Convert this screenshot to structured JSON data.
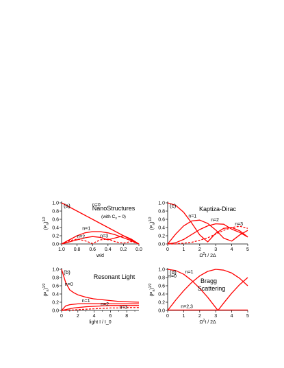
{
  "chart_data": [
    {
      "id": "a",
      "type": "line",
      "panel_label": "(a)",
      "title": "NanoStructures",
      "subtitle": "(with C",
      "subtitle_sub": "3",
      "subtitle_end": " = 0)",
      "xlabel": "w/d",
      "ylabel": "(P",
      "ylabel_sub": "n",
      "ylabel_sup": ")",
      "ylabel_pow": "1/2",
      "xlim": [
        1.0,
        0.0
      ],
      "ylim": [
        0,
        1.0
      ],
      "xticks": [
        1.0,
        0.8,
        0.6,
        0.4,
        0.2,
        0.0
      ],
      "xtick_labels": [
        "1.0",
        "0.8",
        "0.6",
        "0.4",
        "0.2",
        "0.0"
      ],
      "yticks": [
        0,
        0.2,
        0.4,
        0.6,
        0.8,
        1.0
      ],
      "ytick_labels": [
        "0.0",
        "0.2",
        "0.4",
        "0.6",
        "0.8",
        "1.0"
      ],
      "series": [
        {
          "label": "n=0",
          "dashed": false,
          "x": [
            1.0,
            0.9,
            0.8,
            0.7,
            0.6,
            0.5,
            0.4,
            0.3,
            0.2,
            0.1,
            0.0
          ],
          "y": [
            1.0,
            0.9,
            0.8,
            0.7,
            0.6,
            0.5,
            0.4,
            0.3,
            0.2,
            0.1,
            0.0
          ]
        },
        {
          "label": "n=1",
          "dashed": false,
          "x": [
            1.0,
            0.9,
            0.8,
            0.7,
            0.6,
            0.5,
            0.4,
            0.3,
            0.2,
            0.1,
            0.0
          ],
          "y": [
            0.0,
            0.1,
            0.2,
            0.27,
            0.3,
            0.3,
            0.27,
            0.22,
            0.15,
            0.08,
            0.0
          ]
        },
        {
          "label": "n=2",
          "dashed": true,
          "x": [
            1.0,
            0.9,
            0.8,
            0.7,
            0.6,
            0.5,
            0.4,
            0.3,
            0.2,
            0.1,
            0.0
          ],
          "y": [
            0.0,
            0.08,
            0.12,
            0.08,
            0.01,
            0.1,
            0.12,
            0.05,
            0.02,
            0.06,
            0.0
          ]
        },
        {
          "label": "n=3",
          "dashed": false,
          "x": [
            1.0,
            0.9,
            0.8,
            0.7,
            0.6,
            0.5,
            0.4,
            0.3,
            0.2,
            0.1,
            0.0
          ],
          "y": [
            0.0,
            0.05,
            0.1,
            0.15,
            0.18,
            0.16,
            0.1,
            0.15,
            0.2,
            0.12,
            0.0
          ]
        }
      ],
      "n_labels": [
        {
          "text": "n=0",
          "x": 0.55,
          "y": 0.92
        },
        {
          "text": "n=1",
          "x": 0.68,
          "y": 0.34
        },
        {
          "text": "n=2",
          "x": 0.75,
          "y": 0.14
        },
        {
          "text": "n=3",
          "x": 0.45,
          "y": 0.16
        }
      ]
    },
    {
      "id": "c",
      "type": "line",
      "panel_label": "(c)",
      "title": "Kaptiza-Dirac",
      "xlabel_parts": [
        "Ω",
        "2",
        "t / 2Δ"
      ],
      "ylabel": "(P",
      "ylabel_sub": "n",
      "ylabel_sup": ")",
      "ylabel_pow": "1/2",
      "xlim": [
        0,
        5
      ],
      "ylim": [
        0,
        1.0
      ],
      "xticks": [
        0,
        1,
        2,
        3,
        4,
        5
      ],
      "xtick_labels": [
        "0",
        "1",
        "2",
        "3",
        "4",
        "5"
      ],
      "yticks": [
        0,
        0.2,
        0.4,
        0.6,
        0.8,
        1.0
      ],
      "ytick_labels": [
        "0.0",
        "0.2",
        "0.4",
        "0.6",
        "0.8",
        "1.0"
      ],
      "series": [
        {
          "label": "n=0",
          "dashed": false,
          "x": [
            0.0,
            0.5,
            1.0,
            1.5,
            2.0,
            2.5,
            3.0,
            3.5,
            4.0,
            4.5,
            5.0
          ],
          "y": [
            1.0,
            0.94,
            0.77,
            0.51,
            0.22,
            0.05,
            0.26,
            0.38,
            0.4,
            0.32,
            0.17
          ]
        },
        {
          "label": "n=1",
          "dashed": false,
          "x": [
            0.0,
            0.5,
            1.0,
            1.5,
            2.0,
            2.5,
            3.0,
            3.5,
            4.0,
            4.5,
            5.0
          ],
          "y": [
            0.0,
            0.24,
            0.44,
            0.56,
            0.58,
            0.5,
            0.34,
            0.14,
            0.07,
            0.22,
            0.33
          ]
        },
        {
          "label": "n=2",
          "dashed": false,
          "x": [
            0.0,
            0.5,
            1.0,
            1.5,
            2.0,
            2.5,
            3.0,
            3.5,
            4.0,
            4.5,
            5.0
          ],
          "y": [
            0.0,
            0.03,
            0.11,
            0.23,
            0.35,
            0.44,
            0.49,
            0.48,
            0.36,
            0.28,
            0.17
          ]
        },
        {
          "label": "n=3",
          "dashed": true,
          "x": [
            0.0,
            0.5,
            1.0,
            1.5,
            2.0,
            2.5,
            3.0,
            3.5,
            4.0,
            4.5,
            5.0
          ],
          "y": [
            0.0,
            0.0,
            0.02,
            0.04,
            0.09,
            0.15,
            0.24,
            0.33,
            0.4,
            0.43,
            0.38
          ]
        }
      ],
      "n_labels": [
        {
          "text": "n=1",
          "x": 1.55,
          "y": 0.64
        },
        {
          "text": "n=2",
          "x": 2.95,
          "y": 0.55
        },
        {
          "text": "n=3",
          "x": 4.45,
          "y": 0.45
        }
      ]
    },
    {
      "id": "b",
      "type": "line",
      "panel_label": "(b)",
      "title": "Resonant Light",
      "xlabel": "light I / I_0",
      "ylabel": "(P",
      "ylabel_sub": "n",
      "ylabel_sup": ")",
      "ylabel_pow": "1/2",
      "xlim": [
        0,
        9.5
      ],
      "ylim": [
        0,
        1.0
      ],
      "xticks": [
        0,
        2,
        4,
        6,
        8
      ],
      "xtick_labels": [
        "0",
        "2",
        "4",
        "6",
        "8"
      ],
      "yticks": [
        0,
        0.2,
        0.4,
        0.6,
        0.8,
        1.0
      ],
      "ytick_labels": [
        "0.0",
        "0.2",
        "0.4",
        "0.6",
        "0.8",
        "1.0"
      ],
      "series": [
        {
          "label": "n=0",
          "dashed": false,
          "x": [
            0.0,
            0.5,
            1.0,
            1.5,
            2.0,
            3.0,
            4.0,
            5.0,
            6.0,
            7.0,
            8.0,
            9.5
          ],
          "y": [
            1.0,
            0.68,
            0.5,
            0.43,
            0.38,
            0.32,
            0.28,
            0.26,
            0.24,
            0.22,
            0.21,
            0.2
          ]
        },
        {
          "label": "n=1",
          "dashed": false,
          "x": [
            0.0,
            0.5,
            1.0,
            1.5,
            2.0,
            3.0,
            4.0,
            5.0,
            6.0,
            7.0,
            8.0,
            9.5
          ],
          "y": [
            0.0,
            0.11,
            0.14,
            0.15,
            0.16,
            0.165,
            0.165,
            0.165,
            0.16,
            0.16,
            0.16,
            0.16
          ]
        },
        {
          "label": "n=2",
          "dashed": false,
          "x": [
            0.0,
            0.5,
            1.0,
            1.5,
            2.0,
            3.0,
            4.0,
            5.0,
            6.0,
            7.0,
            8.0,
            9.5
          ],
          "y": [
            0.0,
            0.02,
            0.04,
            0.06,
            0.07,
            0.09,
            0.1,
            0.11,
            0.12,
            0.12,
            0.12,
            0.12
          ]
        },
        {
          "label": "n=3",
          "dashed": true,
          "x": [
            0.0,
            0.5,
            1.0,
            1.5,
            2.0,
            3.0,
            4.0,
            5.0,
            6.0,
            7.0,
            8.0,
            9.5
          ],
          "y": [
            0.0,
            0.0,
            0.01,
            0.01,
            0.02,
            0.03,
            0.04,
            0.05,
            0.06,
            0.06,
            0.07,
            0.07
          ]
        }
      ],
      "n_labels": [
        {
          "text": "n=0",
          "x": 0.9,
          "y": 0.6
        },
        {
          "text": "n=1",
          "x": 3.0,
          "y": 0.2
        },
        {
          "text": "n=2",
          "x": 5.3,
          "y": 0.12
        },
        {
          "text": "n=3",
          "x": 7.6,
          "y": 0.04
        }
      ]
    },
    {
      "id": "d",
      "type": "line",
      "panel_label": "(d)",
      "title": "Bragg",
      "title2": "Scattering",
      "xlabel_parts": [
        "Ω",
        "2",
        "t / 2Δ"
      ],
      "ylabel": "(P",
      "ylabel_sub": "n",
      "ylabel_sup": ")",
      "ylabel_pow": "1/2",
      "xlim": [
        0,
        5
      ],
      "ylim": [
        0,
        1.0
      ],
      "xticks": [
        0,
        1,
        2,
        3,
        4,
        5
      ],
      "xtick_labels": [
        "0",
        "1",
        "2",
        "3",
        "4",
        "5"
      ],
      "yticks": [
        0,
        0.2,
        0.4,
        0.6,
        0.8,
        1.0
      ],
      "ytick_labels": [
        "0.0",
        "0.2",
        "0.4",
        "0.6",
        "0.8",
        "1.0"
      ],
      "series": [
        {
          "label": "n=0",
          "dashed": false,
          "x": [
            0.0,
            0.5,
            1.0,
            1.5,
            2.0,
            2.5,
            3.0,
            3.14,
            3.5,
            4.0,
            4.5,
            5.0
          ],
          "y": [
            1.0,
            0.97,
            0.88,
            0.73,
            0.54,
            0.32,
            0.07,
            0.0,
            0.18,
            0.42,
            0.63,
            0.8
          ]
        },
        {
          "label": "n=1",
          "dashed": false,
          "x": [
            0.0,
            0.5,
            1.0,
            1.5,
            2.0,
            2.5,
            3.0,
            3.5,
            4.0,
            4.5,
            5.0
          ],
          "y": [
            0.0,
            0.25,
            0.48,
            0.68,
            0.84,
            0.95,
            1.0,
            0.98,
            0.91,
            0.78,
            0.6
          ]
        },
        {
          "label": "n=2,3",
          "dashed": false,
          "x": [
            0.0,
            1.0,
            2.0,
            3.0,
            4.0,
            5.0
          ],
          "y": [
            0.01,
            0.01,
            0.01,
            0.01,
            0.01,
            0.01
          ]
        }
      ],
      "n_labels": [
        {
          "text": "n=0",
          "x": 0.3,
          "y": 0.8
        },
        {
          "text": "n=1",
          "x": 1.35,
          "y": 0.9
        },
        {
          "text": "n=2,3",
          "x": 1.2,
          "y": 0.06
        }
      ]
    }
  ],
  "colors": {
    "curve": "#ff0000",
    "axis": "#000000"
  }
}
